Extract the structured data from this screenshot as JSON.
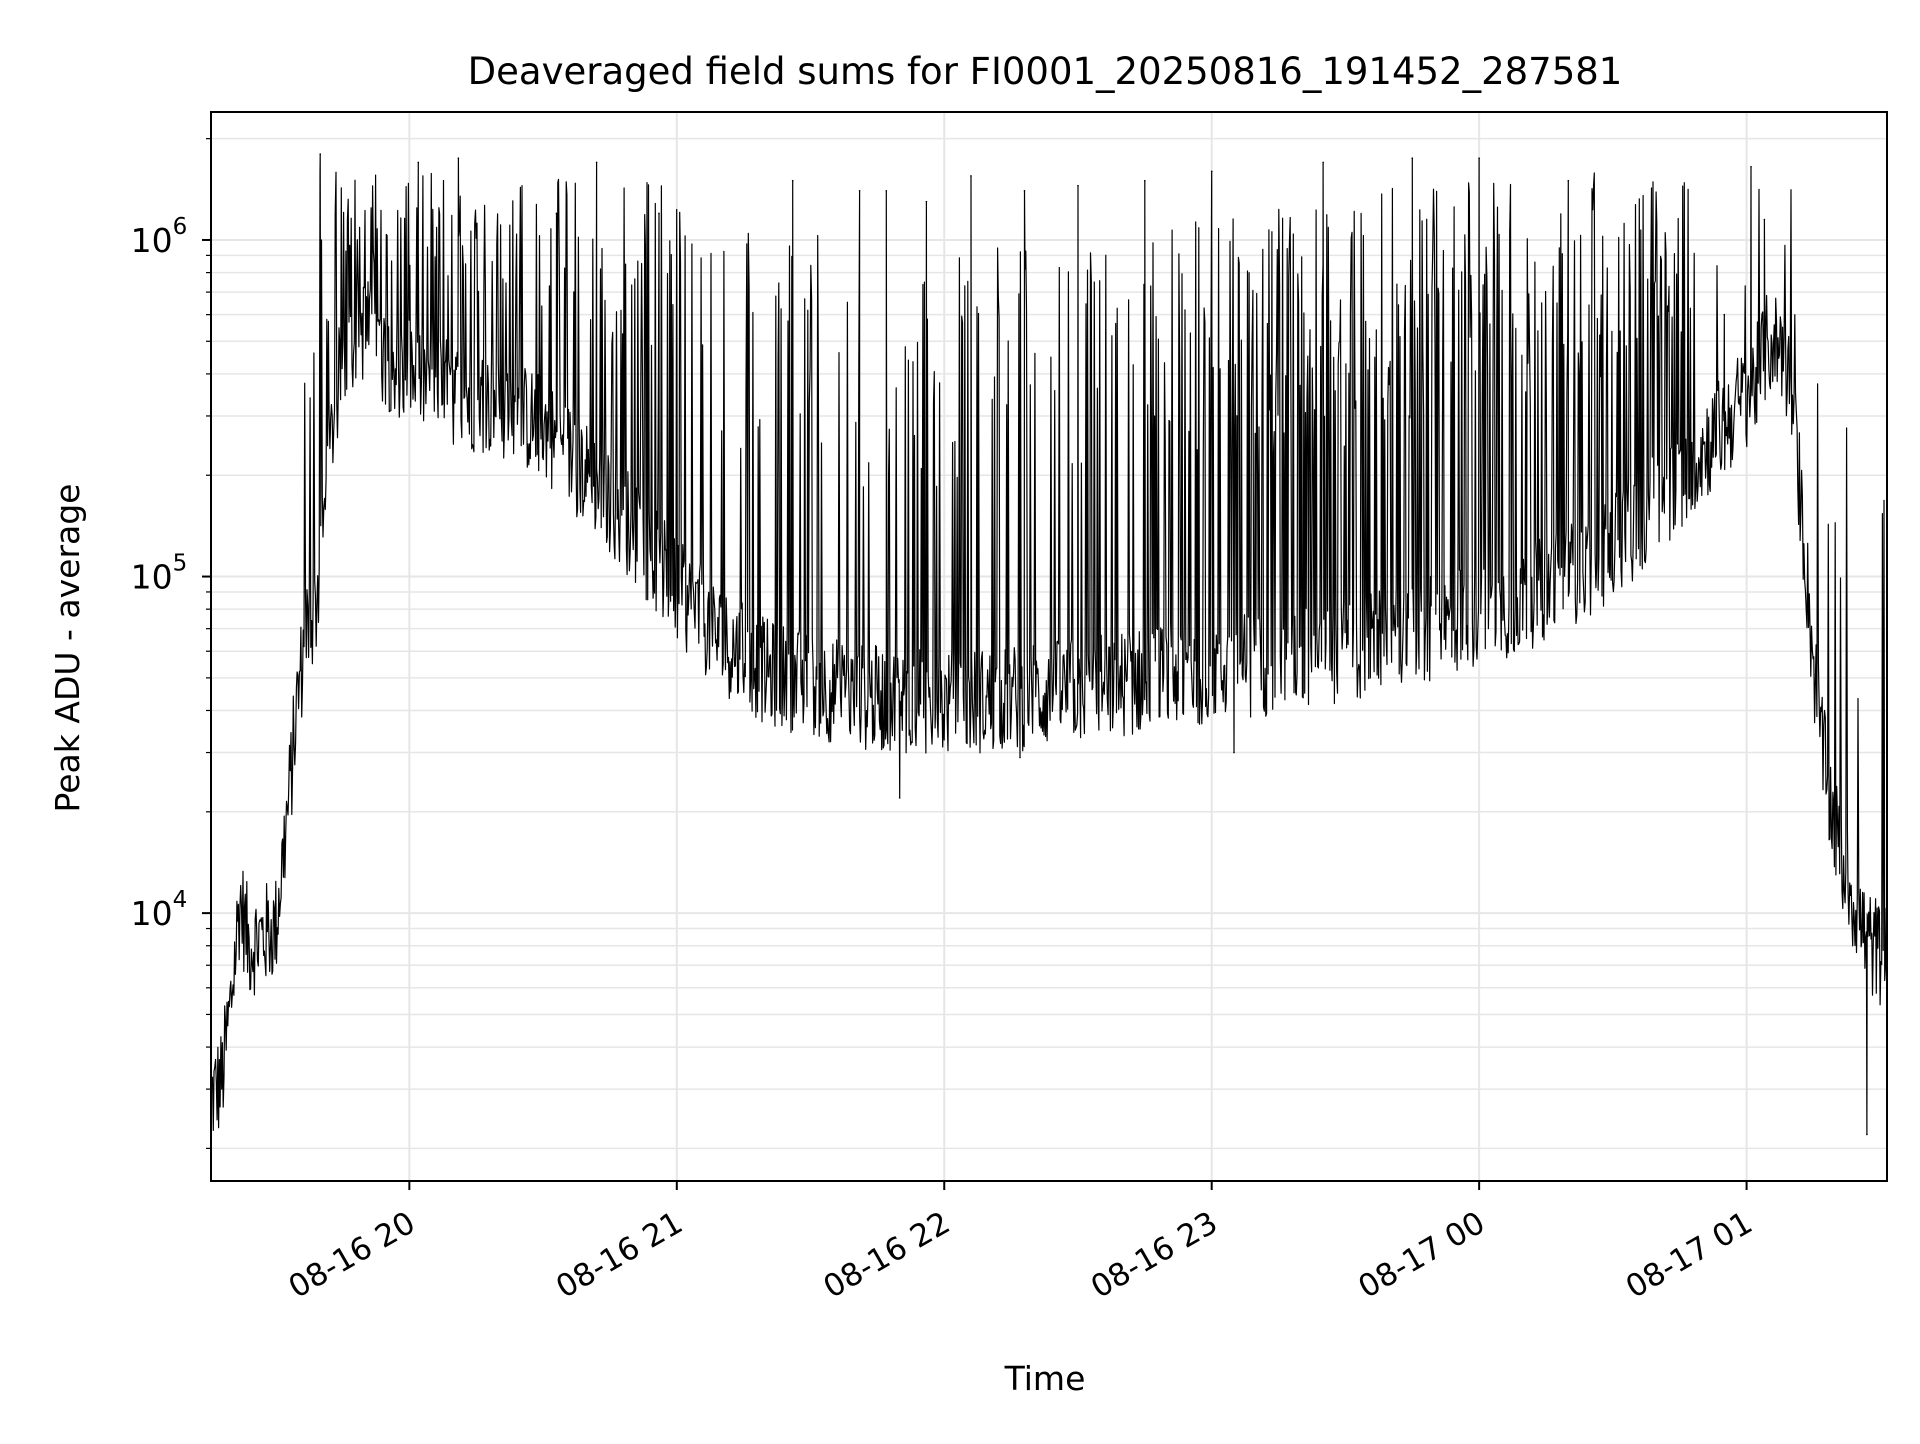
{
  "colors": {
    "line": "#000000",
    "grid": "#e6e6e6",
    "axes": "#000000",
    "background": "#ffffff"
  },
  "chart_data": {
    "type": "line",
    "title": "Deaveraged field sums for FI0001_20250816_191452_287581",
    "xlabel": "Time",
    "ylabel": "Peak ADU - average",
    "yscale": "log",
    "grid": "on (major and minor)",
    "legend": "none",
    "xlim": [
      "2025-08-16T19:15:30",
      "2025-08-17T01:31:30"
    ],
    "ylim": [
      1600,
      2400000
    ],
    "x_ticks": [
      {
        "value": "2025-08-16T20:00",
        "label": "08-16 20"
      },
      {
        "value": "2025-08-16T21:00",
        "label": "08-16 21"
      },
      {
        "value": "2025-08-16T22:00",
        "label": "08-16 22"
      },
      {
        "value": "2025-08-16T23:00",
        "label": "08-16 23"
      },
      {
        "value": "2025-08-17T00:00",
        "label": "08-17 00"
      },
      {
        "value": "2025-08-17T01:00",
        "label": "08-17 01"
      }
    ],
    "y_ticks": [
      {
        "value": 10000,
        "base": "10",
        "exp": "4"
      },
      {
        "value": 100000,
        "base": "10",
        "exp": "5"
      },
      {
        "value": 1000000,
        "base": "10",
        "exp": "6"
      }
    ],
    "series": [
      {
        "baseline": {
          "x": [
            "2025-08-16T19:15:30",
            "2025-08-16T19:18",
            "2025-08-16T19:20",
            "2025-08-16T19:22",
            "2025-08-16T19:24",
            "2025-08-16T19:27",
            "2025-08-16T19:30",
            "2025-08-16T19:33",
            "2025-08-16T19:35",
            "2025-08-16T19:37",
            "2025-08-16T19:39",
            "2025-08-16T19:41",
            "2025-08-16T19:43",
            "2025-08-16T19:45",
            "2025-08-16T19:47",
            "2025-08-16T19:50",
            "2025-08-16T19:55",
            "2025-08-16T20:00",
            "2025-08-16T20:10",
            "2025-08-16T20:20",
            "2025-08-16T20:30",
            "2025-08-16T20:40",
            "2025-08-16T20:50",
            "2025-08-16T21:00",
            "2025-08-16T21:10",
            "2025-08-16T21:20",
            "2025-08-16T21:40",
            "2025-08-16T22:00",
            "2025-08-16T22:20",
            "2025-08-16T22:40",
            "2025-08-16T22:55",
            "2025-08-16T23:10",
            "2025-08-16T23:30",
            "2025-08-16T23:50",
            "2025-08-17T00:10",
            "2025-08-17T00:30",
            "2025-08-17T00:45",
            "2025-08-17T00:55",
            "2025-08-17T01:02",
            "2025-08-17T01:05",
            "2025-08-17T01:08",
            "2025-08-17T01:10",
            "2025-08-17T01:12",
            "2025-08-17T01:15",
            "2025-08-17T01:18",
            "2025-08-17T01:21",
            "2025-08-17T01:24",
            "2025-08-17T01:26",
            "2025-08-17T01:28",
            "2025-08-17T01:31"
          ],
          "y": [
            2800,
            3200,
            5500,
            11000,
            8000,
            8500,
            9000,
            22000,
            45000,
            70000,
            80000,
            150000,
            300000,
            450000,
            520000,
            550000,
            450000,
            400000,
            350000,
            320000,
            280000,
            200000,
            140000,
            90000,
            65000,
            52000,
            44000,
            42000,
            44000,
            48000,
            52000,
            55000,
            60000,
            70000,
            85000,
            120000,
            200000,
            280000,
            380000,
            500000,
            480000,
            350000,
            180000,
            55000,
            24000,
            15000,
            11000,
            9000,
            8000,
            7500
          ]
        },
        "spikes": [
          {
            "x": "2025-08-16T19:40:00",
            "y": 1800000
          },
          {
            "x": "2025-08-16T19:56:00",
            "y": 800000
          },
          {
            "x": "2025-08-16T20:02:00",
            "y": 1700000
          },
          {
            "x": "2025-08-16T20:11:00",
            "y": 1750000
          },
          {
            "x": "2025-08-16T20:25:00",
            "y": 650000
          },
          {
            "x": "2025-08-16T20:33:00",
            "y": 1200000
          },
          {
            "x": "2025-08-16T20:42:00",
            "y": 1700000
          },
          {
            "x": "2025-08-16T20:56:00",
            "y": 1200000
          },
          {
            "x": "2025-08-16T21:26:00",
            "y": 1500000
          },
          {
            "x": "2025-08-16T21:41:00",
            "y": 1400000
          },
          {
            "x": "2025-08-16T21:47:00",
            "y": 1400000
          },
          {
            "x": "2025-08-16T21:56:00",
            "y": 1300000
          },
          {
            "x": "2025-08-16T22:06:00",
            "y": 1550000
          },
          {
            "x": "2025-08-16T22:18:00",
            "y": 1400000
          },
          {
            "x": "2025-08-16T22:30:00",
            "y": 1450000
          },
          {
            "x": "2025-08-16T22:45:00",
            "y": 1500000
          },
          {
            "x": "2025-08-16T23:00:00",
            "y": 1600000
          },
          {
            "x": "2025-08-16T23:25:00",
            "y": 1700000
          },
          {
            "x": "2025-08-16T23:45:00",
            "y": 1750000
          },
          {
            "x": "2025-08-17T00:00:00",
            "y": 1750000
          },
          {
            "x": "2025-08-17T00:20:00",
            "y": 1500000
          },
          {
            "x": "2025-08-17T00:55:00",
            "y": 600000
          },
          {
            "x": "2025-08-17T01:01:00",
            "y": 1650000
          },
          {
            "x": "2025-08-17T01:04:00",
            "y": 1150000
          }
        ],
        "dips": [
          {
            "x": "2025-08-16T21:50:00",
            "y": 22000
          },
          {
            "x": "2025-08-16T22:17:00",
            "y": 29000
          },
          {
            "x": "2025-08-16T23:05:00",
            "y": 30000
          },
          {
            "x": "2025-08-17T01:27:00",
            "y": 2200
          }
        ]
      }
    ]
  }
}
